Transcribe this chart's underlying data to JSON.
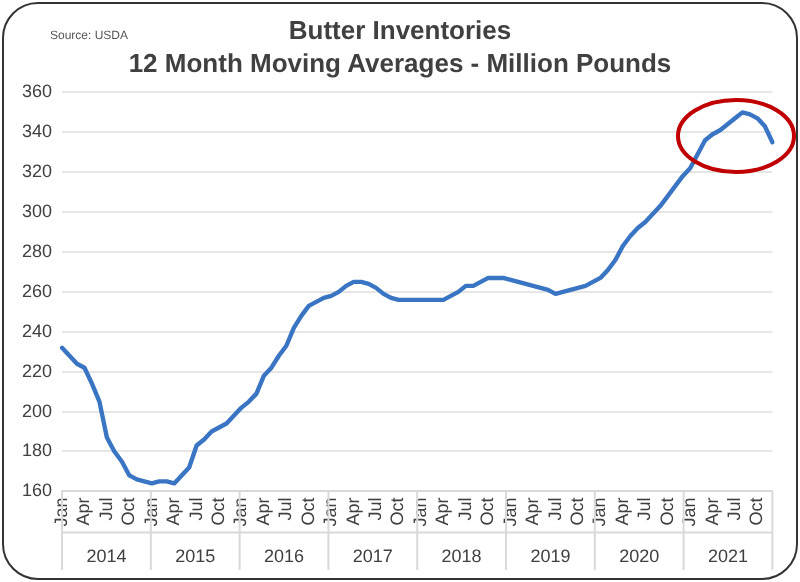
{
  "chart_data": {
    "type": "line",
    "title": "Butter Inventories",
    "subtitle": "12 Month Moving Averages - Million Pounds",
    "annotations": [
      "Source: USDA"
    ],
    "categories": [
      "Jan",
      null,
      null,
      "Apr",
      null,
      null,
      "Jul",
      null,
      null,
      "Oct",
      null,
      null,
      "Jan",
      null,
      null,
      "Apr",
      null,
      null,
      "Jul",
      null,
      null,
      "Oct",
      null,
      null,
      "Jan",
      null,
      null,
      "Apr",
      null,
      null,
      "Jul",
      null,
      null,
      "Oct",
      null,
      null,
      "Jan",
      null,
      null,
      "Apr",
      null,
      null,
      "Jul",
      null,
      null,
      "Oct",
      null,
      null,
      "Jan",
      null,
      null,
      "Apr",
      null,
      null,
      "Jul",
      null,
      null,
      "Oct",
      null,
      null,
      "Jan",
      null,
      null,
      "Apr",
      null,
      null,
      "Jul",
      null,
      null,
      "Oct",
      null,
      null,
      "Jan",
      null,
      null,
      "Apr",
      null,
      null,
      "Jul",
      null,
      null,
      "Oct",
      null,
      null,
      "Jan",
      null,
      null,
      "Apr",
      null,
      null,
      "Jul",
      null,
      null,
      "Oct",
      null,
      null
    ],
    "series": [
      {
        "color": "#3a75c4",
        "values": [
          232,
          228,
          224,
          222,
          214,
          205,
          187,
          180,
          175,
          168,
          166,
          165,
          164,
          165,
          165,
          164,
          168,
          172,
          183,
          186,
          190,
          192,
          194,
          198,
          202,
          205,
          209,
          218,
          222,
          228,
          233,
          242,
          248,
          253,
          255,
          257,
          258,
          260,
          263,
          265,
          265,
          264,
          262,
          259,
          257,
          256,
          256,
          256,
          256,
          256,
          256,
          256,
          258,
          260,
          263,
          263,
          265,
          267,
          267,
          267,
          266,
          265,
          264,
          263,
          262,
          261,
          259,
          260,
          261,
          262,
          263,
          265,
          267,
          271,
          276,
          283,
          288,
          292,
          295,
          299,
          303,
          308,
          313,
          318,
          322,
          329,
          336,
          339,
          341,
          344,
          347,
          350,
          349,
          347,
          343,
          335
        ]
      }
    ],
    "ylim": [
      160,
      360
    ],
    "yticks": [
      160,
      180,
      200,
      220,
      240,
      260,
      280,
      300,
      320,
      340,
      360
    ],
    "x2lim": [
      2014,
      2022
    ],
    "x2ticks": [
      {
        "value": 2014.5,
        "label": "2014"
      },
      {
        "value": 2015.5,
        "label": "2015"
      },
      {
        "value": 2016.5,
        "label": "2016"
      },
      {
        "value": 2017.5,
        "label": "2017"
      },
      {
        "value": 2018.5,
        "label": "2018"
      },
      {
        "value": 2019.5,
        "label": "2019"
      },
      {
        "value": 2020.5,
        "label": "2020"
      },
      {
        "value": 2021.5,
        "label": "2021"
      }
    ],
    "grid": "y",
    "legend": false,
    "marker": "none",
    "line_style": "solid"
  }
}
